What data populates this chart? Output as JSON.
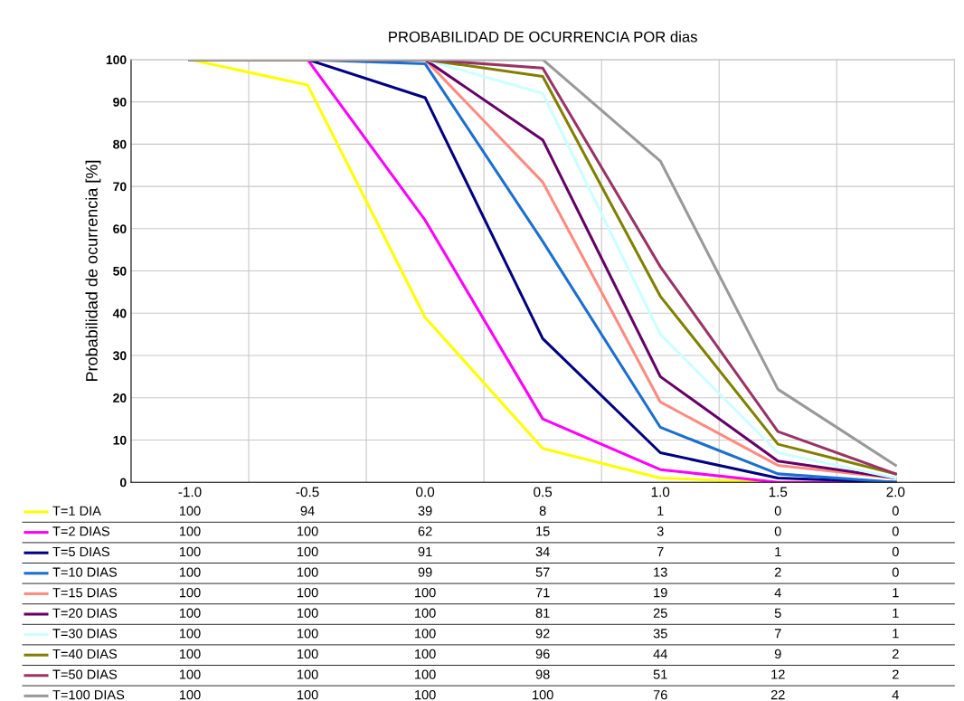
{
  "chart_data": {
    "type": "line",
    "title": "PROBABILIDAD DE OCURRENCIA POR dias",
    "ylabel": "Probabilidad de ocurrencia [%]",
    "categories": [
      "-1.0",
      "-0.5",
      "0.0",
      "0.5",
      "1.0",
      "1.5",
      "2.0"
    ],
    "ylim": [
      0,
      100
    ],
    "yticks": [
      0,
      10,
      20,
      30,
      40,
      50,
      60,
      70,
      80,
      90,
      100
    ],
    "grid": true,
    "legend": "bottom",
    "data_labels": true,
    "marker": "none",
    "line_style": "solid",
    "series": [
      {
        "name": "T=1 DIA",
        "color": "#ffff00",
        "values": [
          100,
          94,
          39,
          8,
          1,
          0,
          0
        ]
      },
      {
        "name": "T=2 DIAS",
        "color": "#ff00ff",
        "values": [
          100,
          100,
          62,
          15,
          3,
          0,
          0
        ]
      },
      {
        "name": "T=5 DIAS",
        "color": "#000080",
        "values": [
          100,
          100,
          91,
          34,
          7,
          1,
          0
        ]
      },
      {
        "name": "T=10 DIAS",
        "color": "#1a6fd0",
        "values": [
          100,
          100,
          99,
          57,
          13,
          2,
          0
        ]
      },
      {
        "name": "T=15 DIAS",
        "color": "#ff8a80",
        "values": [
          100,
          100,
          100,
          71,
          19,
          4,
          1
        ]
      },
      {
        "name": "T=20 DIAS",
        "color": "#660066",
        "values": [
          100,
          100,
          100,
          81,
          25,
          5,
          1
        ]
      },
      {
        "name": "T=30 DIAS",
        "color": "#ccffff",
        "values": [
          100,
          100,
          100,
          92,
          35,
          7,
          1
        ]
      },
      {
        "name": "T=40 DIAS",
        "color": "#808000",
        "values": [
          100,
          100,
          100,
          96,
          44,
          9,
          2
        ]
      },
      {
        "name": "T=50 DIAS",
        "color": "#993366",
        "values": [
          100,
          100,
          100,
          98,
          51,
          12,
          2
        ]
      },
      {
        "name": "T=100 DIAS",
        "color": "#999999",
        "values": [
          100,
          100,
          100,
          100,
          76,
          22,
          4
        ]
      }
    ]
  }
}
